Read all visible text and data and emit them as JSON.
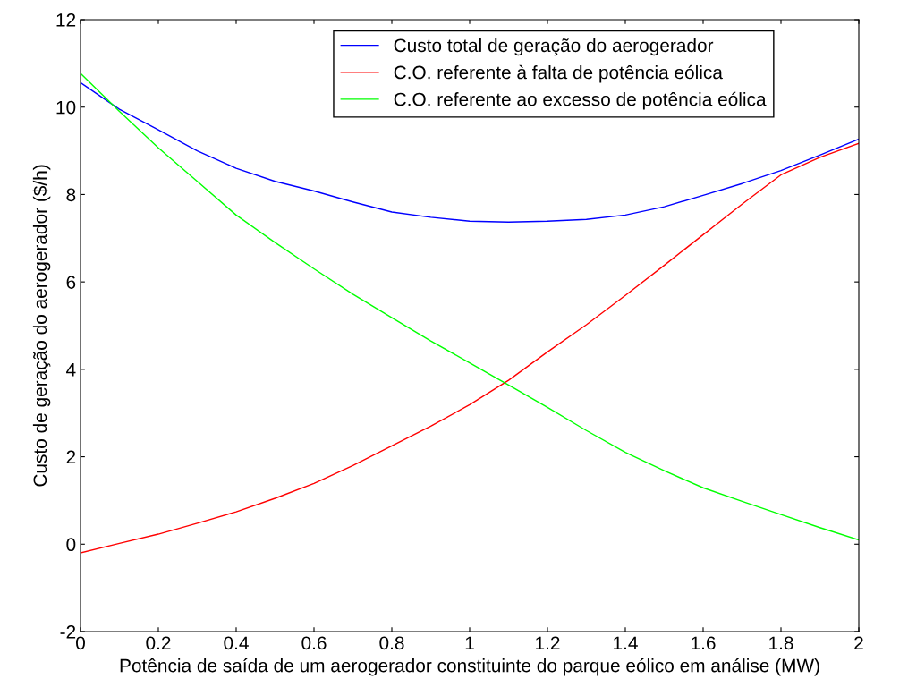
{
  "chart_data": {
    "type": "line",
    "xlabel": "Potência de saída de um aerogerador constituinte do parque eólico em análise (MW)",
    "ylabel": "Custo de geração do aerogerador ($/h)",
    "x": [
      0,
      0.1,
      0.2,
      0.3,
      0.4,
      0.5,
      0.6,
      0.7,
      0.8,
      0.9,
      1.0,
      1.1,
      1.2,
      1.3,
      1.4,
      1.5,
      1.6,
      1.7,
      1.8,
      1.9,
      2.0
    ],
    "series": [
      {
        "name": "Custo total de geração do aerogerador",
        "color": "#0000ff",
        "values": [
          10.56,
          9.95,
          9.48,
          9.0,
          8.6,
          8.3,
          8.08,
          7.83,
          7.6,
          7.48,
          7.39,
          7.37,
          7.39,
          7.43,
          7.53,
          7.72,
          7.98,
          8.25,
          8.55,
          8.9,
          9.27
        ]
      },
      {
        "name": "C.O. referente à falta de potência eólica",
        "color": "#ff0000",
        "values": [
          -0.2,
          0.02,
          0.23,
          0.48,
          0.74,
          1.05,
          1.39,
          1.8,
          2.25,
          2.7,
          3.19,
          3.75,
          4.4,
          5.02,
          5.69,
          6.38,
          7.08,
          7.78,
          8.45,
          8.85,
          9.17
        ]
      },
      {
        "name": "C.O. referente ao excesso de potência eólica",
        "color": "#00ff00",
        "values": [
          10.77,
          9.9,
          9.07,
          8.3,
          7.53,
          6.9,
          6.3,
          5.72,
          5.18,
          4.65,
          4.15,
          3.64,
          3.13,
          2.6,
          2.1,
          1.68,
          1.29,
          0.98,
          0.68,
          0.38,
          0.1
        ]
      }
    ],
    "xlim": [
      0,
      2
    ],
    "xticks": [
      0,
      0.2,
      0.4,
      0.6,
      0.8,
      1,
      1.2,
      1.4,
      1.6,
      1.8,
      2
    ],
    "ylim": [
      -2,
      12
    ],
    "yticks": [
      -2,
      0,
      2,
      4,
      6,
      8,
      10,
      12
    ],
    "legend": "top right",
    "grid": false
  }
}
